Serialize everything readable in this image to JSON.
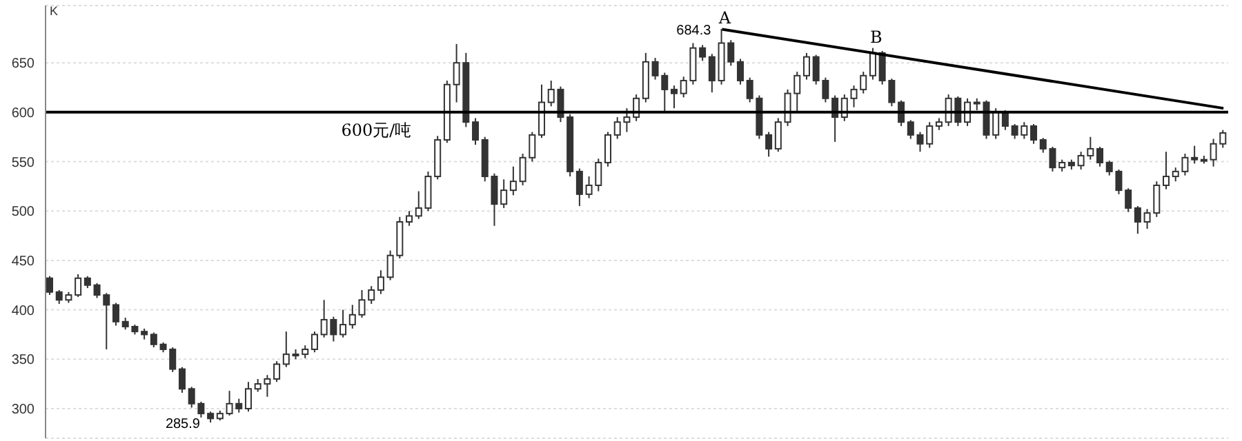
{
  "chart_data": {
    "type": "candlestick",
    "color": "#333333",
    "categories": [
      null,
      null,
      null,
      null,
      null,
      null,
      null,
      null,
      null,
      null,
      null,
      null,
      null,
      null,
      null,
      null,
      null,
      null,
      null,
      null,
      null,
      null,
      null,
      null,
      null,
      null,
      null,
      null,
      null,
      null,
      null,
      null,
      null,
      null,
      null,
      null,
      null,
      null,
      null,
      null,
      null,
      null,
      null,
      null,
      null,
      null,
      null,
      null,
      null,
      null,
      null,
      null,
      null,
      null,
      null,
      null,
      null,
      null,
      null,
      null,
      null,
      null,
      null,
      null,
      null,
      null,
      null,
      null,
      null,
      null,
      null,
      null,
      null,
      null,
      null,
      null,
      null,
      null,
      null,
      null,
      null,
      null,
      null,
      null,
      null,
      null,
      null,
      null,
      null,
      null,
      null,
      null,
      null,
      null,
      null,
      null,
      null,
      null,
      null,
      null,
      null,
      null,
      null,
      null,
      null,
      null,
      null,
      null,
      null,
      null,
      null,
      null,
      null,
      null,
      null,
      null,
      null,
      null,
      null,
      null,
      null,
      null,
      null,
      null,
      null
    ],
    "ohlc": [
      [
        432,
        434,
        415,
        418
      ],
      [
        418,
        420,
        406,
        410
      ],
      [
        410,
        418,
        407,
        415
      ],
      [
        415,
        436,
        413,
        432
      ],
      [
        432,
        434,
        422,
        425
      ],
      [
        425,
        427,
        412,
        415
      ],
      [
        415,
        417,
        360,
        405
      ],
      [
        405,
        407,
        384,
        388
      ],
      [
        388,
        392,
        380,
        383
      ],
      [
        383,
        385,
        375,
        378
      ],
      [
        378,
        381,
        370,
        375
      ],
      [
        375,
        377,
        362,
        365
      ],
      [
        365,
        367,
        357,
        360
      ],
      [
        360,
        362,
        337,
        340
      ],
      [
        340,
        342,
        316,
        320
      ],
      [
        320,
        322,
        301,
        305
      ],
      [
        305,
        307,
        291,
        295
      ],
      [
        295,
        297,
        285.9,
        290
      ],
      [
        290,
        298,
        288,
        295
      ],
      [
        295,
        318,
        293,
        305
      ],
      [
        305,
        310,
        296,
        300
      ],
      [
        300,
        327,
        297,
        320
      ],
      [
        320,
        330,
        317,
        325
      ],
      [
        325,
        334,
        312,
        330
      ],
      [
        330,
        348,
        327,
        345
      ],
      [
        345,
        378,
        342,
        355
      ],
      [
        355,
        360,
        350,
        355
      ],
      [
        355,
        364,
        351,
        360
      ],
      [
        360,
        378,
        357,
        375
      ],
      [
        375,
        410,
        372,
        390
      ],
      [
        390,
        393,
        368,
        375
      ],
      [
        375,
        400,
        372,
        385
      ],
      [
        385,
        405,
        381,
        395
      ],
      [
        395,
        420,
        392,
        410
      ],
      [
        410,
        424,
        406,
        420
      ],
      [
        420,
        440,
        416,
        433
      ],
      [
        433,
        460,
        430,
        455
      ],
      [
        455,
        494,
        452,
        489
      ],
      [
        489,
        500,
        485,
        495
      ],
      [
        495,
        520,
        492,
        503
      ],
      [
        503,
        540,
        500,
        535
      ],
      [
        535,
        576,
        532,
        572
      ],
      [
        572,
        632,
        569,
        628
      ],
      [
        628,
        669,
        610,
        650
      ],
      [
        650,
        660,
        585,
        590
      ],
      [
        590,
        594,
        567,
        572
      ],
      [
        572,
        575,
        530,
        535
      ],
      [
        535,
        538,
        485,
        507
      ],
      [
        507,
        532,
        503,
        521
      ],
      [
        521,
        545,
        516,
        530
      ],
      [
        530,
        558,
        526,
        554
      ],
      [
        554,
        580,
        550,
        577
      ],
      [
        577,
        628,
        574,
        610
      ],
      [
        610,
        632,
        606,
        623
      ],
      [
        623,
        626,
        590,
        595
      ],
      [
        595,
        598,
        535,
        540
      ],
      [
        540,
        543,
        505,
        517
      ],
      [
        517,
        535,
        513,
        526
      ],
      [
        526,
        553,
        520,
        549
      ],
      [
        549,
        580,
        545,
        577
      ],
      [
        577,
        595,
        573,
        590
      ],
      [
        590,
        604,
        580,
        595
      ],
      [
        595,
        618,
        591,
        614
      ],
      [
        614,
        660,
        610,
        651
      ],
      [
        651,
        655,
        633,
        637
      ],
      [
        637,
        640,
        600,
        623
      ],
      [
        623,
        627,
        604,
        619
      ],
      [
        619,
        636,
        615,
        632
      ],
      [
        632,
        670,
        628,
        665
      ],
      [
        665,
        668,
        652,
        656
      ],
      [
        656,
        659,
        620,
        632
      ],
      [
        632,
        684.3,
        628,
        670
      ],
      [
        670,
        673,
        647,
        651
      ],
      [
        651,
        654,
        628,
        632
      ],
      [
        632,
        635,
        610,
        614
      ],
      [
        614,
        617,
        573,
        577
      ],
      [
        577,
        580,
        555,
        563
      ],
      [
        563,
        594,
        560,
        590
      ],
      [
        590,
        623,
        586,
        619
      ],
      [
        619,
        641,
        600,
        637
      ],
      [
        637,
        660,
        633,
        656
      ],
      [
        656,
        658,
        628,
        632
      ],
      [
        632,
        635,
        610,
        614
      ],
      [
        614,
        617,
        570,
        595
      ],
      [
        595,
        618,
        591,
        614
      ],
      [
        614,
        627,
        605,
        623
      ],
      [
        623,
        641,
        619,
        637
      ],
      [
        637,
        665,
        633,
        660
      ],
      [
        660,
        662,
        628,
        632
      ],
      [
        632,
        634,
        606,
        610
      ],
      [
        610,
        612,
        586,
        590
      ],
      [
        590,
        592,
        573,
        577
      ],
      [
        577,
        580,
        560,
        568
      ],
      [
        568,
        590,
        564,
        586
      ],
      [
        586,
        594,
        582,
        590
      ],
      [
        590,
        618,
        586,
        614
      ],
      [
        614,
        616,
        586,
        590
      ],
      [
        590,
        614,
        586,
        610
      ],
      [
        610,
        614,
        602,
        610
      ],
      [
        610,
        612,
        573,
        577
      ],
      [
        577,
        604,
        573,
        600
      ],
      [
        600,
        602,
        582,
        586
      ],
      [
        586,
        588,
        573,
        577
      ],
      [
        577,
        590,
        573,
        586
      ],
      [
        586,
        588,
        568,
        572
      ],
      [
        572,
        574,
        559,
        563
      ],
      [
        563,
        565,
        540,
        544
      ],
      [
        544,
        552,
        540,
        549
      ],
      [
        549,
        552,
        542,
        546
      ],
      [
        546,
        560,
        542,
        556
      ],
      [
        556,
        575,
        552,
        563
      ],
      [
        563,
        565,
        545,
        549
      ],
      [
        549,
        551,
        536,
        540
      ],
      [
        540,
        542,
        517,
        521
      ],
      [
        521,
        523,
        499,
        503
      ],
      [
        503,
        505,
        477,
        489
      ],
      [
        489,
        502,
        482,
        498
      ],
      [
        498,
        530,
        494,
        526
      ],
      [
        526,
        560,
        522,
        535
      ],
      [
        535,
        544,
        530,
        540
      ],
      [
        540,
        558,
        536,
        554
      ],
      [
        554,
        566,
        548,
        552
      ],
      [
        552,
        556,
        548,
        552
      ],
      [
        552,
        573,
        545,
        568
      ],
      [
        568,
        582,
        564,
        579
      ]
    ],
    "series": [
      {
        "type": "line",
        "color": "#000000",
        "values": [
          null,
          null,
          null,
          null,
          null,
          null,
          null,
          null,
          null,
          null,
          null,
          null,
          null,
          null,
          null,
          null,
          null,
          null,
          null,
          null,
          null,
          null,
          null,
          null,
          null,
          null,
          null,
          null,
          null,
          null,
          null,
          null,
          null,
          null,
          null,
          null,
          null,
          null,
          null,
          null,
          null,
          null,
          null,
          null,
          null,
          null,
          null,
          null,
          null,
          null,
          null,
          null,
          null,
          null,
          null,
          null,
          null,
          null,
          null,
          null,
          null,
          null,
          null,
          null,
          null,
          null,
          null,
          null,
          null,
          null,
          null,
          684,
          null,
          null,
          null,
          null,
          null,
          null,
          null,
          null,
          null,
          null,
          null,
          null,
          null,
          null,
          null,
          null,
          null,
          null,
          null,
          null,
          null,
          null,
          null,
          null,
          null,
          null,
          null,
          null,
          null,
          null,
          null,
          null,
          null,
          null,
          null,
          null,
          null,
          null,
          null,
          null,
          null,
          null,
          null,
          null,
          null,
          null,
          null,
          null,
          null,
          null,
          null,
          null,
          604
        ]
      }
    ],
    "ylim": [
      270,
      708
    ],
    "yticks": [
      300,
      350,
      400,
      450,
      500,
      550,
      600,
      650
    ],
    "grid": "y",
    "tick_labels": "y",
    "ref_lines": [
      {
        "axis": "y",
        "value": 600,
        "label": "600元/吨",
        "color": "#000000"
      }
    ],
    "annotations": [
      "K",
      "684.3",
      "285.9",
      {
        "text": "A",
        "y": 684.3
      },
      {
        "text": "B",
        "y": 665
      }
    ]
  }
}
